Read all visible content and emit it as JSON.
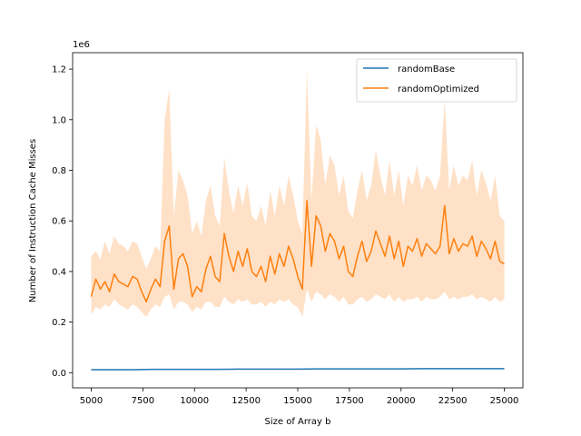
{
  "chart_data": {
    "type": "line",
    "title": "",
    "xlabel": "Size of Array b",
    "ylabel": "Number of Instruction Cache Misses",
    "y_offset_label": "1e6",
    "xlim": [
      4100,
      25900
    ],
    "ylim": [
      -0.06,
      1.265
    ],
    "xticks": [
      5000,
      7500,
      10000,
      12500,
      15000,
      17500,
      20000,
      22500,
      25000
    ],
    "xtick_labels": [
      "5000",
      "7500",
      "10000",
      "12500",
      "15000",
      "17500",
      "20000",
      "22500",
      "25000"
    ],
    "yticks": [
      0.0,
      0.2,
      0.4,
      0.6,
      0.8,
      1.0,
      1.2
    ],
    "ytick_labels": [
      "0.0",
      "0.2",
      "0.4",
      "0.6",
      "0.8",
      "1.0",
      "1.2"
    ],
    "grid": false,
    "legend_position": "upper right",
    "series": [
      {
        "name": "randomBase",
        "color": "#1f77b4",
        "x_start": 5000,
        "x_end": 25000,
        "values": [
          0.012,
          0.012,
          0.012,
          0.013,
          0.013,
          0.013,
          0.013,
          0.014,
          0.014,
          0.014,
          0.014,
          0.015,
          0.015,
          0.015,
          0.015,
          0.015,
          0.016,
          0.016,
          0.016,
          0.016,
          0.016
        ]
      },
      {
        "name": "randomOptimized",
        "color": "#ff7f0e",
        "band_color": "#ffdcbd",
        "x_start": 5000,
        "x_end": 25000,
        "values": [
          0.3,
          0.37,
          0.33,
          0.36,
          0.32,
          0.39,
          0.36,
          0.35,
          0.34,
          0.38,
          0.37,
          0.32,
          0.28,
          0.33,
          0.37,
          0.34,
          0.52,
          0.58,
          0.33,
          0.45,
          0.47,
          0.42,
          0.3,
          0.34,
          0.32,
          0.41,
          0.46,
          0.38,
          0.36,
          0.55,
          0.46,
          0.4,
          0.48,
          0.42,
          0.49,
          0.4,
          0.38,
          0.42,
          0.36,
          0.46,
          0.39,
          0.47,
          0.42,
          0.5,
          0.45,
          0.38,
          0.33,
          0.68,
          0.42,
          0.62,
          0.58,
          0.48,
          0.55,
          0.52,
          0.45,
          0.5,
          0.4,
          0.38,
          0.46,
          0.52,
          0.44,
          0.48,
          0.56,
          0.51,
          0.46,
          0.54,
          0.45,
          0.52,
          0.42,
          0.5,
          0.48,
          0.53,
          0.46,
          0.51,
          0.49,
          0.47,
          0.5,
          0.66,
          0.47,
          0.53,
          0.48,
          0.51,
          0.5,
          0.54,
          0.46,
          0.52,
          0.49,
          0.45,
          0.52,
          0.44,
          0.43
        ],
        "band_lower": [
          0.23,
          0.26,
          0.25,
          0.27,
          0.26,
          0.29,
          0.27,
          0.26,
          0.25,
          0.27,
          0.26,
          0.24,
          0.22,
          0.25,
          0.27,
          0.26,
          0.3,
          0.31,
          0.25,
          0.28,
          0.28,
          0.27,
          0.24,
          0.26,
          0.25,
          0.28,
          0.28,
          0.26,
          0.26,
          0.3,
          0.28,
          0.27,
          0.29,
          0.28,
          0.29,
          0.27,
          0.27,
          0.28,
          0.26,
          0.28,
          0.27,
          0.29,
          0.28,
          0.29,
          0.27,
          0.26,
          0.22,
          0.33,
          0.28,
          0.32,
          0.31,
          0.29,
          0.31,
          0.3,
          0.28,
          0.3,
          0.27,
          0.27,
          0.29,
          0.3,
          0.28,
          0.29,
          0.31,
          0.3,
          0.29,
          0.31,
          0.28,
          0.3,
          0.28,
          0.29,
          0.29,
          0.3,
          0.28,
          0.3,
          0.29,
          0.29,
          0.3,
          0.32,
          0.29,
          0.3,
          0.29,
          0.3,
          0.3,
          0.31,
          0.29,
          0.3,
          0.29,
          0.28,
          0.3,
          0.28,
          0.29
        ],
        "band_upper": [
          0.46,
          0.48,
          0.45,
          0.52,
          0.47,
          0.54,
          0.51,
          0.5,
          0.48,
          0.52,
          0.51,
          0.46,
          0.41,
          0.45,
          0.5,
          0.48,
          1.0,
          1.12,
          0.62,
          0.8,
          0.76,
          0.7,
          0.55,
          0.6,
          0.54,
          0.68,
          0.74,
          0.62,
          0.58,
          0.85,
          0.72,
          0.63,
          0.74,
          0.66,
          0.75,
          0.62,
          0.6,
          0.66,
          0.58,
          0.72,
          0.62,
          0.74,
          0.66,
          0.78,
          0.7,
          0.6,
          0.55,
          1.2,
          0.68,
          0.98,
          0.92,
          0.74,
          0.86,
          0.82,
          0.7,
          0.78,
          0.64,
          0.61,
          0.72,
          0.8,
          0.68,
          0.74,
          0.88,
          0.78,
          0.7,
          0.84,
          0.7,
          0.8,
          0.66,
          0.78,
          0.74,
          0.82,
          0.72,
          0.78,
          0.76,
          0.72,
          0.78,
          1.08,
          0.72,
          0.82,
          0.74,
          0.78,
          0.76,
          0.84,
          0.7,
          0.8,
          0.75,
          0.68,
          0.78,
          0.62,
          0.6
        ]
      }
    ]
  }
}
